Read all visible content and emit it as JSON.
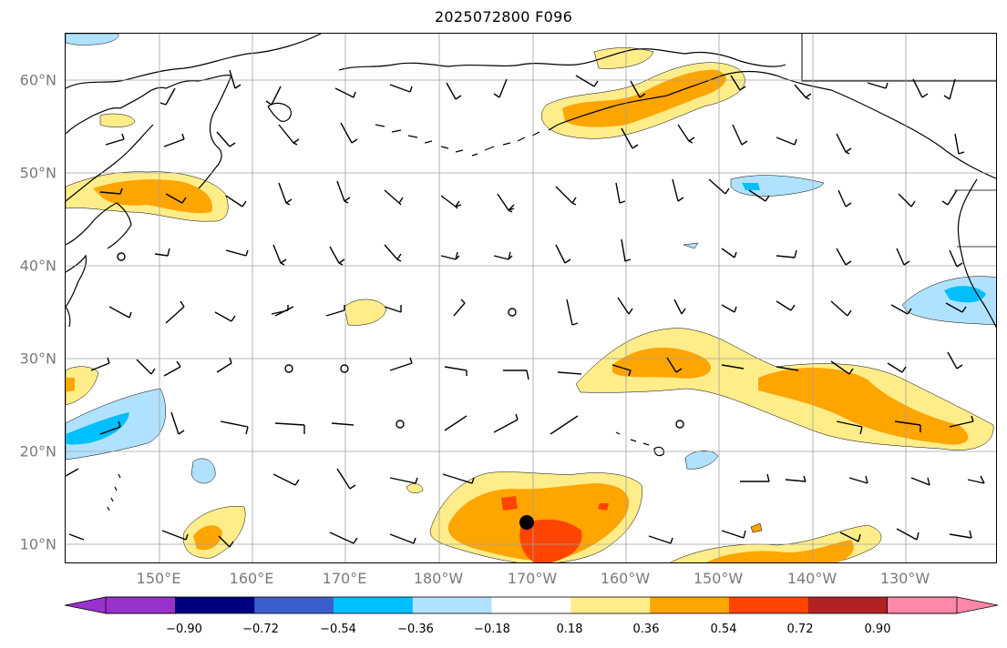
{
  "title": "2025072800 F096",
  "map": {
    "latitude_labels": [
      "60°N",
      "50°N",
      "40°N",
      "30°N",
      "20°N",
      "10°N"
    ],
    "longitude_labels": [
      "150°E",
      "160°E",
      "170°E",
      "180°W",
      "170°W",
      "160°W",
      "150°W",
      "140°W",
      "130°W"
    ],
    "gridlines": true,
    "gridline_color": "#a0a0a0",
    "label_color": "#7a7a7a",
    "coastline_color": "#000000",
    "marker": {
      "label": "",
      "color": "#000000",
      "lat": 12.5,
      "lon": -171.0
    }
  },
  "colorbar": {
    "tick_labels": [
      "−0.90",
      "−0.72",
      "−0.54",
      "−0.36",
      "−0.18",
      "0.18",
      "0.36",
      "0.54",
      "0.72",
      "0.90"
    ],
    "colors": [
      "#9932cc",
      "#000080",
      "#3a5fcd",
      "#00bfff",
      "#b0e2ff",
      "#ffffff",
      "#ffed8a",
      "#ffa500",
      "#ff4500",
      "#b22222",
      "#ff88aa"
    ],
    "extend": "both"
  }
}
